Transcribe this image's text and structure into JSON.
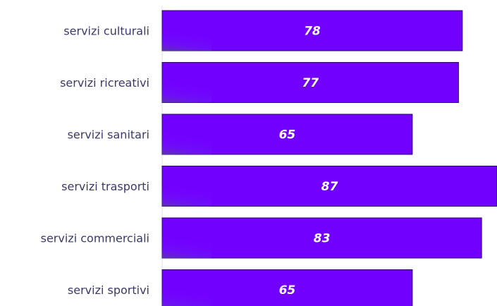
{
  "chart_data": {
    "type": "bar",
    "orientation": "horizontal",
    "categories": [
      "servizi culturali",
      "servizi ricreativi",
      "servizi sanitari",
      "servizi trasporti",
      "servizi commerciali",
      "servizi sportivi"
    ],
    "values": [
      78,
      77,
      65,
      87,
      83,
      65
    ],
    "data_labels": [
      "78",
      "77",
      "65",
      "87",
      "83",
      "65"
    ],
    "title": "",
    "xlabel": "",
    "ylabel": "",
    "xlim": [
      0,
      87
    ],
    "grid": false,
    "legend": "none",
    "bar_color": "#7200ff",
    "bar_shadow_color": "#5a3aa0"
  }
}
